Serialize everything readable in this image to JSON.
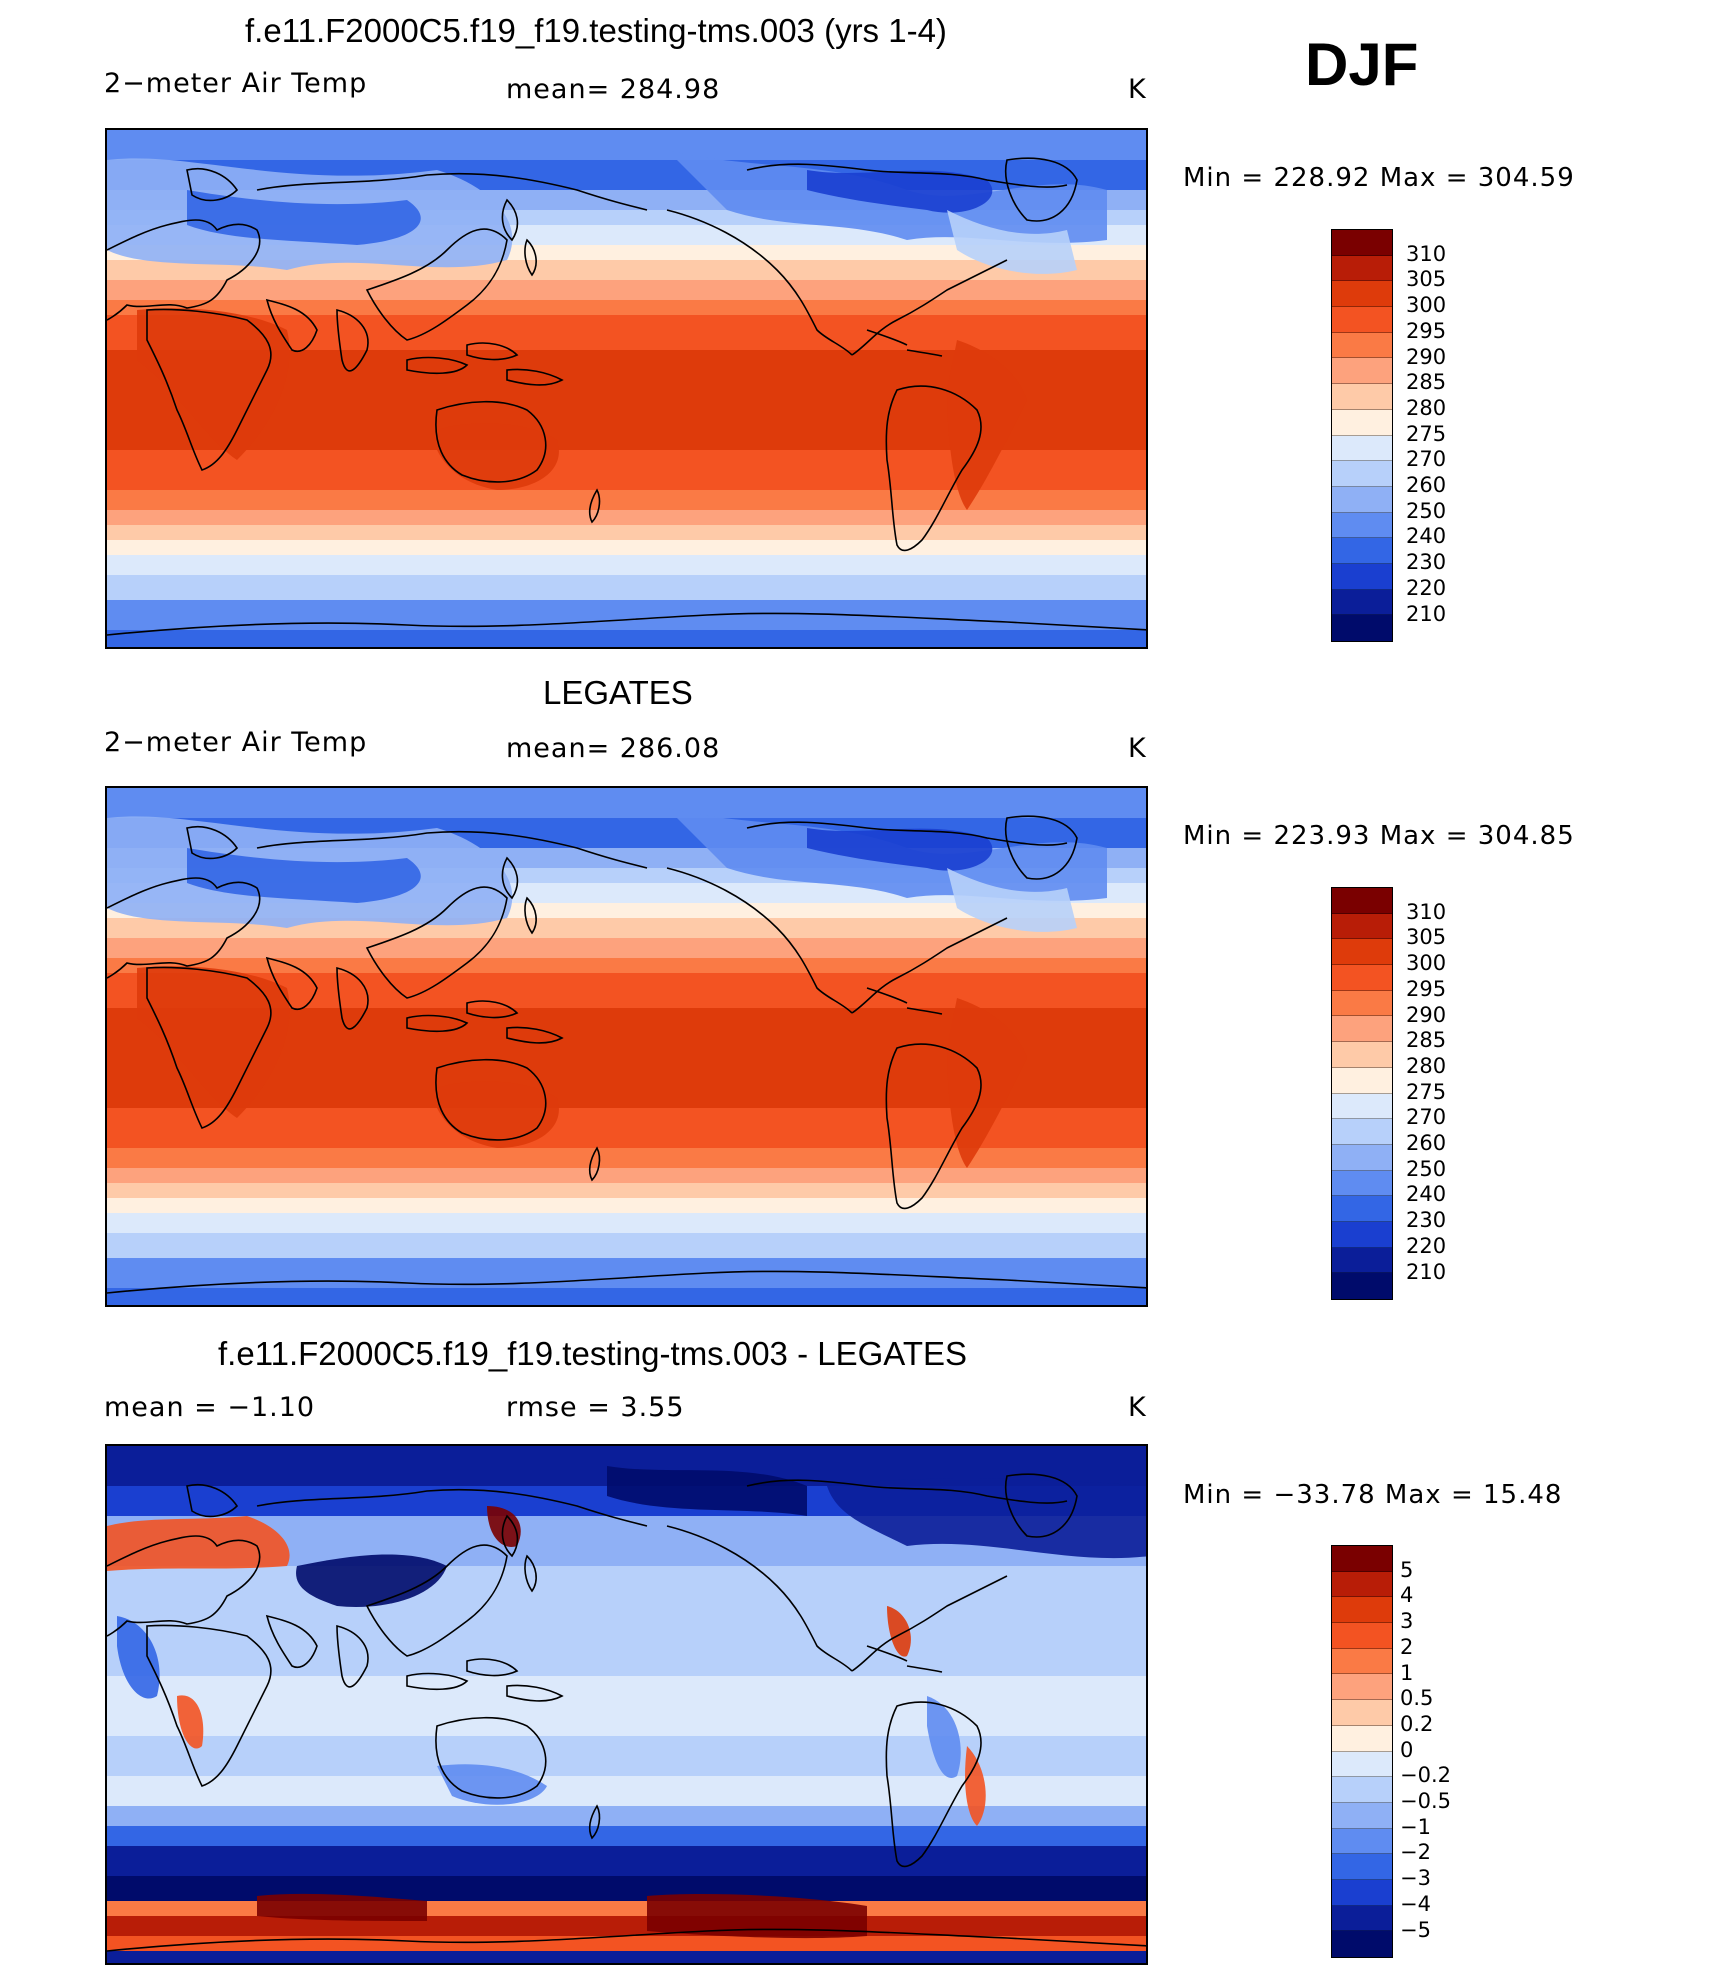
{
  "season": "DJF",
  "chart_data": [
    {
      "type": "heatmap",
      "title": "f.e11.F2000C5.f19_f19.testing-tms.003 (yrs 1-4)",
      "left_label": "2−meter Air Temp",
      "center_label": "mean=  284.98",
      "unit": "K",
      "minmax": "Min  =  228.92  Max  =  304.59",
      "min": 228.92,
      "max": 304.59,
      "mean": 284.98,
      "colorbar_levels": [
        "310",
        "305",
        "300",
        "295",
        "290",
        "285",
        "280",
        "275",
        "270",
        "260",
        "250",
        "240",
        "230",
        "220",
        "210"
      ],
      "colorbar_colors": [
        "#7a0000",
        "#b81d07",
        "#de3b0b",
        "#f35322",
        "#fa7a45",
        "#fda27d",
        "#fecaa8",
        "#fff0e0",
        "#dce9fb",
        "#b7d0fa",
        "#8fb0f5",
        "#5f8cf1",
        "#3366e5",
        "#1a3fd0",
        "#0b1e99",
        "#000b6b"
      ]
    },
    {
      "type": "heatmap",
      "title": "LEGATES",
      "left_label": "2−meter Air Temp",
      "center_label": "mean=  286.08",
      "unit": "K",
      "minmax": "Min  =  223.93  Max  =  304.85",
      "min": 223.93,
      "max": 304.85,
      "mean": 286.08,
      "colorbar_levels": [
        "310",
        "305",
        "300",
        "295",
        "290",
        "285",
        "280",
        "275",
        "270",
        "260",
        "250",
        "240",
        "230",
        "220",
        "210"
      ],
      "colorbar_colors": [
        "#7a0000",
        "#b81d07",
        "#de3b0b",
        "#f35322",
        "#fa7a45",
        "#fda27d",
        "#fecaa8",
        "#fff0e0",
        "#dce9fb",
        "#b7d0fa",
        "#8fb0f5",
        "#5f8cf1",
        "#3366e5",
        "#1a3fd0",
        "#0b1e99",
        "#000b6b"
      ]
    },
    {
      "type": "heatmap",
      "title": "f.e11.F2000C5.f19_f19.testing-tms.003 - LEGATES",
      "left_label": "mean  =    −1.10",
      "center_label": "rmse  =      3.55",
      "unit": "K",
      "minmax": "Min  =  −33.78  Max  =    15.48",
      "min": -33.78,
      "max": 15.48,
      "mean": -1.1,
      "rmse": 3.55,
      "colorbar_levels": [
        "5",
        "4",
        "3",
        "2",
        "1",
        "0.5",
        "0.2",
        "0",
        "−0.2",
        "−0.5",
        "−1",
        "−2",
        "−3",
        "−4",
        "−5"
      ],
      "colorbar_colors": [
        "#7a0000",
        "#b81d07",
        "#de3b0b",
        "#f35322",
        "#fa7a45",
        "#fda27d",
        "#fecaa8",
        "#fff0e0",
        "#dce9fb",
        "#b7d0fa",
        "#8fb0f5",
        "#5f8cf1",
        "#3366e5",
        "#1a3fd0",
        "#0b1e99",
        "#000b6b"
      ]
    }
  ]
}
